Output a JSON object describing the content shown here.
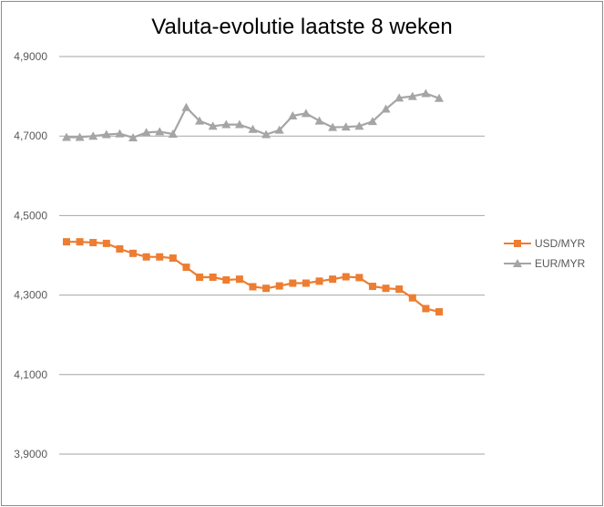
{
  "chart_data": {
    "type": "line",
    "title": "Valuta-evolutie laatste 8 weken",
    "xlabel": "",
    "ylabel": "",
    "ylim": [
      3.9,
      4.9
    ],
    "yticks": [
      "3,9000",
      "4,1000",
      "4,3000",
      "4,5000",
      "4,7000",
      "4,9000"
    ],
    "ytick_values": [
      3.9,
      4.1,
      4.3,
      4.5,
      4.7,
      4.9
    ],
    "grid": true,
    "legend": "right",
    "series": [
      {
        "name": "USD/MYR",
        "color": "#ed7d31",
        "marker": "square",
        "values": [
          4.434,
          4.434,
          4.432,
          4.43,
          4.416,
          4.405,
          4.396,
          4.396,
          4.393,
          4.37,
          4.345,
          4.345,
          4.338,
          4.34,
          4.321,
          4.317,
          4.323,
          4.33,
          4.33,
          4.335,
          4.34,
          4.346,
          4.344,
          4.322,
          4.317,
          4.315,
          4.293,
          4.266,
          4.258
        ]
      },
      {
        "name": "EUR/MYR",
        "color": "#a5a5a5",
        "marker": "triangle",
        "values": [
          4.697,
          4.697,
          4.7,
          4.704,
          4.706,
          4.696,
          4.709,
          4.711,
          4.705,
          4.772,
          4.738,
          4.725,
          4.729,
          4.729,
          4.717,
          4.704,
          4.715,
          4.751,
          4.757,
          4.738,
          4.722,
          4.723,
          4.725,
          4.737,
          4.768,
          4.796,
          4.8,
          4.807,
          4.795
        ]
      }
    ]
  }
}
